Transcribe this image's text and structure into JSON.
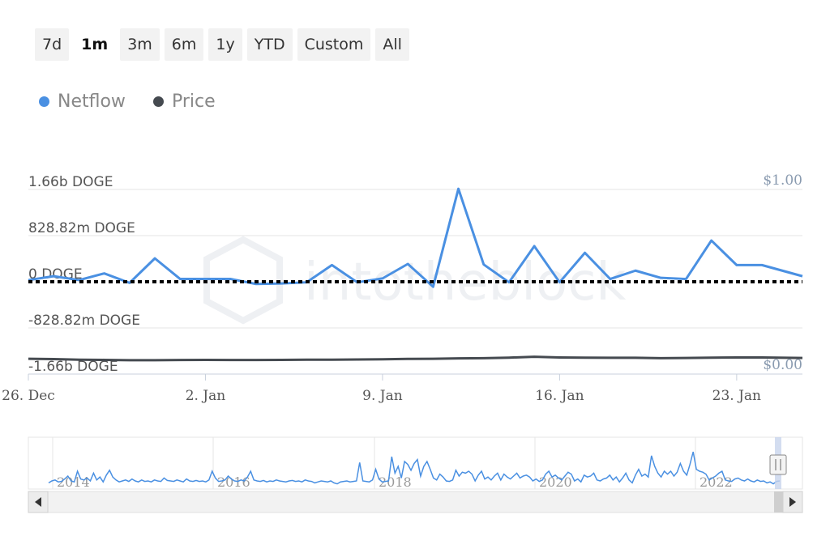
{
  "range_selector": {
    "buttons": [
      "7d",
      "1m",
      "3m",
      "6m",
      "1y",
      "YTD",
      "Custom",
      "All"
    ],
    "active": "1m"
  },
  "colors": {
    "netflow": "#4a90e2",
    "price": "#454a50",
    "zero_line": "#000000",
    "grid": "#e6e6e6",
    "axis_text": "#555555",
    "right_axis_text": "#8a9bb0"
  },
  "chart_data": {
    "type": "line",
    "watermark": "intotheblock",
    "legend": {
      "placement": "top-left",
      "entries": [
        "Netflow",
        "Price"
      ]
    },
    "x_ticks": [
      {
        "label": "26. Dec",
        "day": 0
      },
      {
        "label": "2. Jan",
        "day": 7
      },
      {
        "label": "9. Jan",
        "day": 14
      },
      {
        "label": "16. Jan",
        "day": 21
      },
      {
        "label": "23. Jan",
        "day": 28
      }
    ],
    "xlim": [
      0,
      30.6
    ],
    "y_left": {
      "ticks": [
        {
          "label": "1.66b DOGE",
          "value": 1657640000
        },
        {
          "label": "828.82m DOGE",
          "value": 828820000
        },
        {
          "label": "0 DOGE",
          "value": 0
        },
        {
          "label": "-828.82m DOGE",
          "value": -828820000
        },
        {
          "label": "-1.66b DOGE",
          "value": -1657640000
        }
      ],
      "ylim": [
        -1657640000,
        1657640000
      ]
    },
    "y_right": {
      "ticks": [
        {
          "label": "$1.00",
          "value": 1.0
        },
        {
          "label": "$0.00",
          "value": 0.0
        }
      ],
      "ylim": [
        0,
        1
      ]
    },
    "grid": true,
    "series": [
      {
        "name": "Netflow",
        "x": [
          0,
          1,
          2,
          3,
          4,
          5,
          6,
          7,
          8,
          9,
          10,
          11,
          12,
          13,
          14,
          15,
          16,
          17,
          18,
          19,
          20,
          21,
          22,
          23,
          24,
          25,
          26,
          27,
          28,
          29,
          30.6
        ],
        "values": [
          30000000,
          100000000,
          30000000,
          150000000,
          -20000000,
          420000000,
          50000000,
          50000000,
          50000000,
          -40000000,
          -30000000,
          -10000000,
          300000000,
          -10000000,
          60000000,
          320000000,
          -90000000,
          1670000000,
          310000000,
          -10000000,
          640000000,
          -10000000,
          520000000,
          50000000,
          200000000,
          70000000,
          50000000,
          740000000,
          300000000,
          300000000,
          100000000
        ]
      },
      {
        "name": "Price",
        "x": [
          0,
          1,
          2,
          3,
          4,
          5,
          6,
          7,
          8,
          9,
          10,
          11,
          12,
          13,
          14,
          15,
          16,
          17,
          18,
          19,
          20,
          21,
          22,
          23,
          24,
          25,
          26,
          27,
          28,
          29,
          30.6
        ],
        "values": [
          0.083,
          0.081,
          0.078,
          0.077,
          0.075,
          0.075,
          0.076,
          0.077,
          0.076,
          0.076,
          0.077,
          0.078,
          0.078,
          0.079,
          0.08,
          0.082,
          0.083,
          0.085,
          0.086,
          0.089,
          0.094,
          0.09,
          0.089,
          0.088,
          0.088,
          0.086,
          0.087,
          0.089,
          0.09,
          0.09,
          0.087
        ]
      }
    ],
    "navigator": {
      "x_ticks": [
        "2014",
        "2016",
        "2018",
        "2020",
        "2022"
      ],
      "ylim": [
        0,
        100
      ],
      "series": [
        6,
        10,
        12,
        8,
        9,
        14,
        20,
        10,
        8,
        30,
        14,
        12,
        16,
        10,
        26,
        12,
        18,
        8,
        22,
        32,
        18,
        12,
        8,
        10,
        12,
        9,
        14,
        10,
        8,
        12,
        9,
        10,
        8,
        12,
        10,
        9,
        16,
        11,
        10,
        9,
        12,
        10,
        8,
        14,
        10,
        9,
        11,
        9,
        10,
        8,
        12,
        30,
        16,
        9,
        10,
        12,
        20,
        14,
        10,
        9,
        12,
        10,
        18,
        30,
        12,
        10,
        9,
        11,
        8,
        10,
        9,
        12,
        10,
        9,
        8,
        10,
        11,
        9,
        10,
        8,
        12,
        10,
        9,
        6,
        8,
        10,
        9,
        8,
        10,
        6,
        4,
        8,
        9,
        10,
        8,
        9,
        10,
        48,
        10,
        9,
        8,
        12,
        34,
        14,
        8,
        9,
        10,
        60,
        26,
        40,
        16,
        50,
        44,
        32,
        46,
        54,
        20,
        40,
        50,
        34,
        16,
        12,
        24,
        18,
        10,
        9,
        12,
        32,
        20,
        28,
        26,
        30,
        24,
        10,
        22,
        30,
        14,
        18,
        12,
        20,
        26,
        12,
        24,
        18,
        14,
        20,
        26,
        16,
        20,
        22,
        18,
        10,
        14,
        9,
        12,
        24,
        30,
        18,
        22,
        16,
        12,
        20,
        28,
        24,
        10,
        14,
        8,
        22,
        18,
        20,
        26,
        12,
        10,
        14,
        16,
        22,
        12,
        18,
        8,
        16,
        26,
        12,
        6,
        22,
        34,
        20,
        24,
        18,
        62,
        40,
        26,
        18,
        30,
        24,
        30,
        20,
        28,
        46,
        30,
        22,
        44,
        70,
        34,
        30,
        28,
        24,
        12,
        16,
        20,
        26,
        30,
        12,
        10,
        9,
        14,
        16,
        12,
        10,
        14,
        10,
        8,
        12,
        9,
        10,
        6,
        8,
        4,
        9,
        10
      ]
    }
  }
}
